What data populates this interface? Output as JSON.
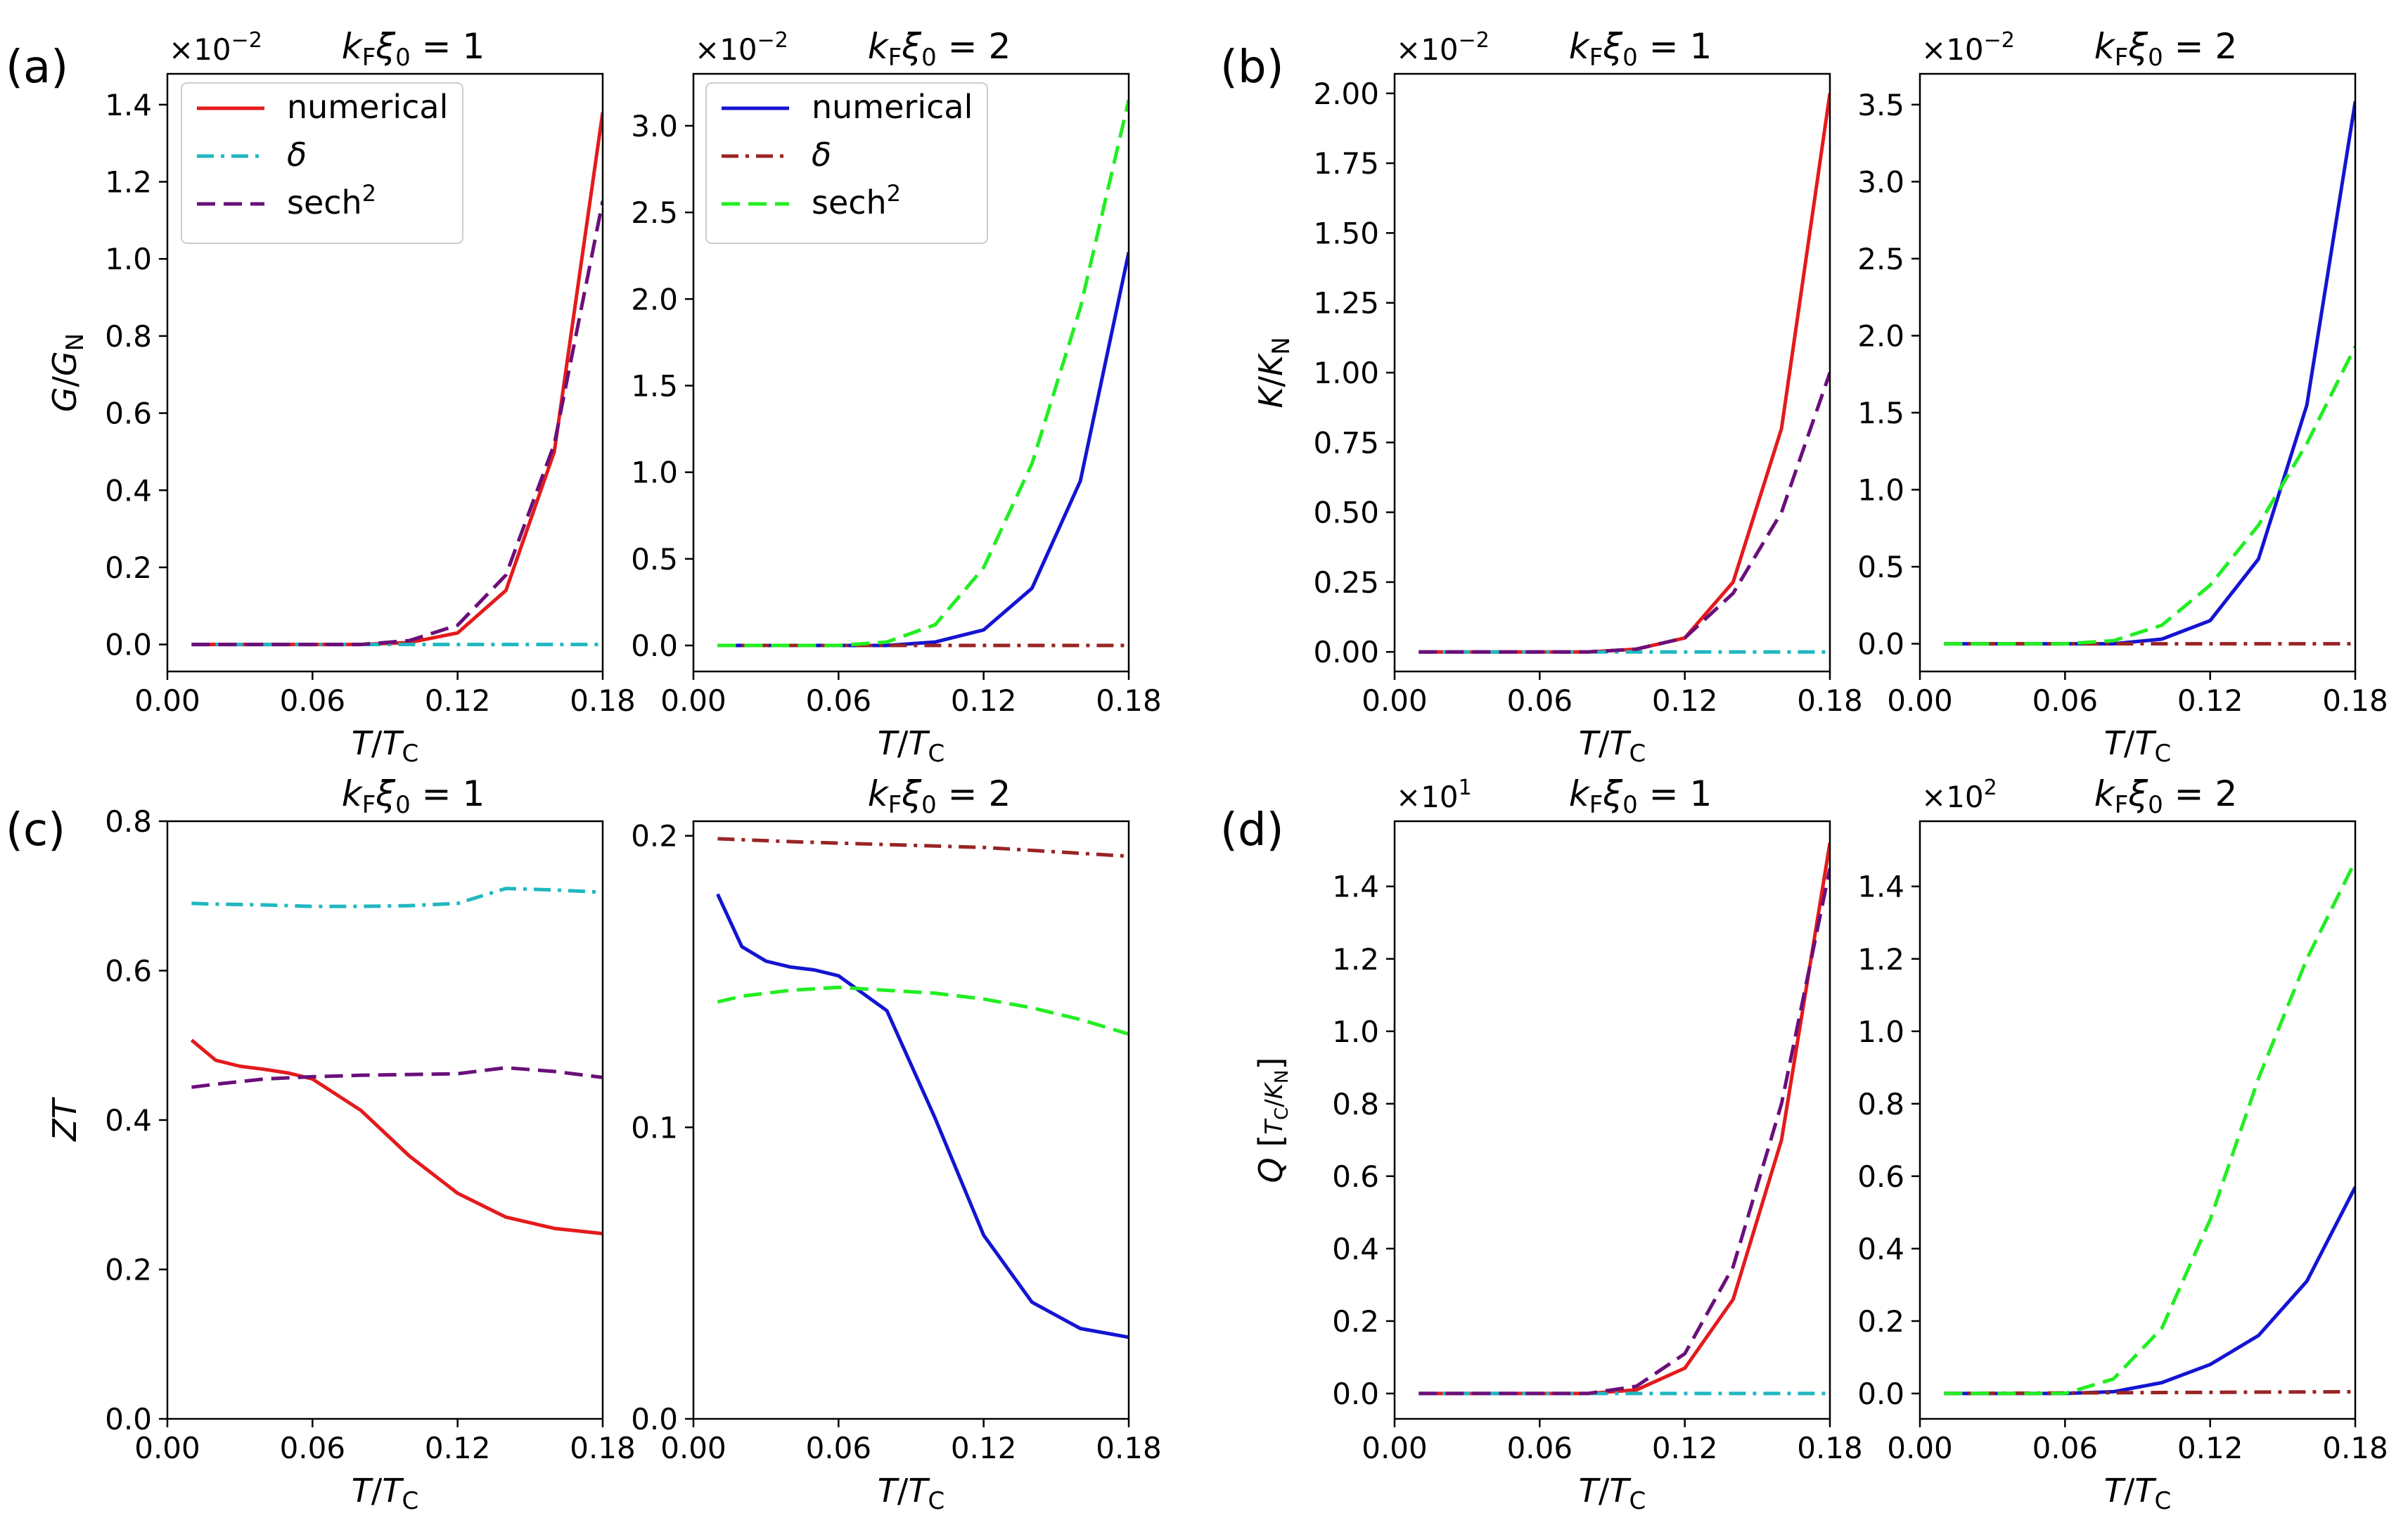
{
  "figure": {
    "panel_labels": [
      "(a)",
      "(b)",
      "(c)",
      "(d)"
    ],
    "title_left": "k_Fξ_0 = 1",
    "title_right": "k_Fξ_0 = 2"
  },
  "legend_left": [
    {
      "label": "numerical",
      "color": "#e41a1c",
      "style": "solid"
    },
    {
      "label": "δ",
      "color": "#20b7c0",
      "style": "dashdot"
    },
    {
      "label": "sech²",
      "color": "#6a0f7a",
      "style": "dashed"
    }
  ],
  "legend_right": [
    {
      "label": "numerical",
      "color": "#1414d2",
      "style": "solid"
    },
    {
      "label": "δ",
      "color": "#9a2424",
      "style": "dashdot"
    },
    {
      "label": "sech²",
      "color": "#22ee22",
      "style": "dashed"
    }
  ],
  "chart_data": [
    {
      "id": "a1",
      "panel": "(a)",
      "type": "line",
      "title": "k_Fξ_0 = 1",
      "xlabel": "T/T_C",
      "ylabel": "G/G_N",
      "multiplier": "×10⁻²",
      "xlim": [
        0,
        0.18
      ],
      "ylim": [
        -0.07,
        1.48
      ],
      "xticks": [
        0,
        0.06,
        0.12,
        0.18
      ],
      "xtick_labels": [
        "0.00",
        "0.06",
        "0.12",
        "0.18"
      ],
      "yticks": [
        0,
        0.2,
        0.4,
        0.6,
        0.8,
        1.0,
        1.2,
        1.4
      ],
      "ytick_labels": [
        "0.0",
        "0.2",
        "0.4",
        "0.6",
        "0.8",
        "1.0",
        "1.2",
        "1.4"
      ],
      "series": [
        {
          "name": "numerical",
          "color": "#e41a1c",
          "style": "solid",
          "x": [
            0.01,
            0.02,
            0.04,
            0.06,
            0.08,
            0.1,
            0.12,
            0.14,
            0.16,
            0.18
          ],
          "y": [
            0,
            0,
            0,
            0,
            0,
            0.005,
            0.03,
            0.14,
            0.5,
            1.38
          ]
        },
        {
          "name": "δ",
          "color": "#20b7c0",
          "style": "dashdot",
          "x": [
            0.01,
            0.18
          ],
          "y": [
            0,
            0
          ]
        },
        {
          "name": "sech²",
          "color": "#6a0f7a",
          "style": "dashed",
          "x": [
            0.01,
            0.02,
            0.04,
            0.06,
            0.08,
            0.1,
            0.12,
            0.14,
            0.16,
            0.18
          ],
          "y": [
            0,
            0,
            0,
            0,
            0,
            0.01,
            0.05,
            0.18,
            0.52,
            1.15
          ]
        }
      ]
    },
    {
      "id": "a2",
      "panel": "(a)",
      "type": "line",
      "title": "k_Fξ_0 = 2",
      "xlabel": "T/T_C",
      "ylabel": "",
      "multiplier": "×10⁻²",
      "xlim": [
        0,
        0.18
      ],
      "ylim": [
        -0.15,
        3.3
      ],
      "xticks": [
        0,
        0.06,
        0.12,
        0.18
      ],
      "xtick_labels": [
        "0.00",
        "0.06",
        "0.12",
        "0.18"
      ],
      "yticks": [
        0,
        0.5,
        1.0,
        1.5,
        2.0,
        2.5,
        3.0
      ],
      "ytick_labels": [
        "0.0",
        "0.5",
        "1.0",
        "1.5",
        "2.0",
        "2.5",
        "3.0"
      ],
      "series": [
        {
          "name": "numerical",
          "color": "#1414d2",
          "style": "solid",
          "x": [
            0.01,
            0.02,
            0.04,
            0.06,
            0.08,
            0.1,
            0.12,
            0.14,
            0.16,
            0.18
          ],
          "y": [
            0,
            0,
            0,
            0,
            0,
            0.02,
            0.09,
            0.33,
            0.95,
            2.27
          ]
        },
        {
          "name": "δ",
          "color": "#9a2424",
          "style": "dashdot",
          "x": [
            0.01,
            0.18
          ],
          "y": [
            0,
            0
          ]
        },
        {
          "name": "sech²",
          "color": "#22ee22",
          "style": "dashed",
          "x": [
            0.01,
            0.02,
            0.04,
            0.06,
            0.08,
            0.1,
            0.12,
            0.14,
            0.16,
            0.18
          ],
          "y": [
            0,
            0,
            0,
            0,
            0.02,
            0.12,
            0.45,
            1.05,
            1.95,
            3.15
          ]
        }
      ]
    },
    {
      "id": "b1",
      "panel": "(b)",
      "type": "line",
      "title": "k_Fξ_0 = 1",
      "xlabel": "T/T_C",
      "ylabel": "K/K_N",
      "multiplier": "×10⁻²",
      "xlim": [
        0,
        0.18
      ],
      "ylim": [
        -0.07,
        2.07
      ],
      "xticks": [
        0,
        0.06,
        0.12,
        0.18
      ],
      "xtick_labels": [
        "0.00",
        "0.06",
        "0.12",
        "0.18"
      ],
      "yticks": [
        0,
        0.25,
        0.5,
        0.75,
        1.0,
        1.25,
        1.5,
        1.75,
        2.0
      ],
      "ytick_labels": [
        "0.00",
        "0.25",
        "0.50",
        "0.75",
        "1.00",
        "1.25",
        "1.50",
        "1.75",
        "2.00"
      ],
      "series": [
        {
          "name": "numerical",
          "color": "#e41a1c",
          "style": "solid",
          "x": [
            0.01,
            0.02,
            0.04,
            0.06,
            0.08,
            0.1,
            0.12,
            0.14,
            0.16,
            0.18
          ],
          "y": [
            0,
            0,
            0,
            0,
            0,
            0.01,
            0.05,
            0.25,
            0.8,
            2.0
          ]
        },
        {
          "name": "δ",
          "color": "#20b7c0",
          "style": "dashdot",
          "x": [
            0.01,
            0.18
          ],
          "y": [
            0,
            0
          ]
        },
        {
          "name": "sech²",
          "color": "#6a0f7a",
          "style": "dashed",
          "x": [
            0.01,
            0.02,
            0.04,
            0.06,
            0.08,
            0.1,
            0.12,
            0.14,
            0.16,
            0.18
          ],
          "y": [
            0,
            0,
            0,
            0,
            0,
            0.01,
            0.05,
            0.21,
            0.5,
            1.0
          ]
        }
      ]
    },
    {
      "id": "b2",
      "panel": "(b)",
      "type": "line",
      "title": "k_Fξ_0 = 2",
      "xlabel": "T/T_C",
      "ylabel": "",
      "multiplier": "×10⁻²",
      "xlim": [
        0,
        0.18
      ],
      "ylim": [
        -0.18,
        3.7
      ],
      "xticks": [
        0,
        0.06,
        0.12,
        0.18
      ],
      "xtick_labels": [
        "0.00",
        "0.06",
        "0.12",
        "0.18"
      ],
      "yticks": [
        0,
        0.5,
        1.0,
        1.5,
        2.0,
        2.5,
        3.0,
        3.5
      ],
      "ytick_labels": [
        "0.0",
        "0.5",
        "1.0",
        "1.5",
        "2.0",
        "2.5",
        "3.0",
        "3.5"
      ],
      "series": [
        {
          "name": "numerical",
          "color": "#1414d2",
          "style": "solid",
          "x": [
            0.01,
            0.02,
            0.04,
            0.06,
            0.08,
            0.1,
            0.12,
            0.14,
            0.16,
            0.18
          ],
          "y": [
            0,
            0,
            0,
            0,
            0,
            0.03,
            0.15,
            0.55,
            1.55,
            3.52
          ]
        },
        {
          "name": "δ",
          "color": "#9a2424",
          "style": "dashdot",
          "x": [
            0.01,
            0.18
          ],
          "y": [
            0,
            0
          ]
        },
        {
          "name": "sech²",
          "color": "#22ee22",
          "style": "dashed",
          "x": [
            0.01,
            0.02,
            0.04,
            0.06,
            0.08,
            0.1,
            0.12,
            0.14,
            0.16,
            0.18
          ],
          "y": [
            0,
            0,
            0,
            0,
            0.02,
            0.12,
            0.38,
            0.77,
            1.3,
            1.93
          ]
        }
      ]
    },
    {
      "id": "c1",
      "panel": "(c)",
      "type": "line",
      "title": "k_Fξ_0 = 1",
      "xlabel": "T/T_C",
      "ylabel": "ZT",
      "multiplier": "",
      "xlim": [
        0,
        0.18
      ],
      "ylim": [
        0,
        0.8
      ],
      "xticks": [
        0,
        0.06,
        0.12,
        0.18
      ],
      "xtick_labels": [
        "0.00",
        "0.06",
        "0.12",
        "0.18"
      ],
      "yticks": [
        0,
        0.2,
        0.4,
        0.6,
        0.8
      ],
      "ytick_labels": [
        "0.0",
        "0.2",
        "0.4",
        "0.6",
        "0.8"
      ],
      "series": [
        {
          "name": "numerical",
          "color": "#e41a1c",
          "style": "solid",
          "x": [
            0.01,
            0.02,
            0.03,
            0.04,
            0.05,
            0.06,
            0.08,
            0.1,
            0.12,
            0.14,
            0.16,
            0.18
          ],
          "y": [
            0.507,
            0.48,
            0.472,
            0.468,
            0.463,
            0.455,
            0.413,
            0.352,
            0.302,
            0.27,
            0.255,
            0.248
          ]
        },
        {
          "name": "δ",
          "color": "#20b7c0",
          "style": "dashdot",
          "x": [
            0.01,
            0.02,
            0.04,
            0.06,
            0.08,
            0.1,
            0.12,
            0.14,
            0.16,
            0.18
          ],
          "y": [
            0.69,
            0.689,
            0.688,
            0.686,
            0.686,
            0.687,
            0.69,
            0.71,
            0.708,
            0.705
          ]
        },
        {
          "name": "sech²",
          "color": "#6a0f7a",
          "style": "dashed",
          "x": [
            0.01,
            0.02,
            0.04,
            0.06,
            0.08,
            0.1,
            0.12,
            0.14,
            0.16,
            0.18
          ],
          "y": [
            0.444,
            0.448,
            0.455,
            0.458,
            0.46,
            0.461,
            0.462,
            0.47,
            0.465,
            0.457
          ]
        }
      ]
    },
    {
      "id": "c2",
      "panel": "(c)",
      "type": "line",
      "title": "k_Fξ_0 = 2",
      "xlabel": "T/T_C",
      "ylabel": "",
      "multiplier": "",
      "xlim": [
        0,
        0.18
      ],
      "ylim": [
        0,
        0.205
      ],
      "xticks": [
        0,
        0.06,
        0.12,
        0.18
      ],
      "xtick_labels": [
        "0.00",
        "0.06",
        "0.12",
        "0.18"
      ],
      "yticks": [
        0,
        0.1,
        0.2
      ],
      "ytick_labels": [
        "0.0",
        "0.1",
        "0.2"
      ],
      "series": [
        {
          "name": "numerical",
          "color": "#1414d2",
          "style": "solid",
          "x": [
            0.01,
            0.02,
            0.03,
            0.04,
            0.05,
            0.06,
            0.08,
            0.1,
            0.12,
            0.14,
            0.16,
            0.18
          ],
          "y": [
            0.18,
            0.162,
            0.157,
            0.155,
            0.154,
            0.152,
            0.14,
            0.103,
            0.063,
            0.04,
            0.031,
            0.028
          ]
        },
        {
          "name": "δ",
          "color": "#9a2424",
          "style": "dashdot",
          "x": [
            0.01,
            0.04,
            0.08,
            0.12,
            0.16,
            0.18
          ],
          "y": [
            0.199,
            0.198,
            0.197,
            0.196,
            0.194,
            0.193
          ]
        },
        {
          "name": "sech²",
          "color": "#22ee22",
          "style": "dashed",
          "x": [
            0.01,
            0.02,
            0.04,
            0.06,
            0.08,
            0.1,
            0.12,
            0.14,
            0.16,
            0.18
          ],
          "y": [
            0.143,
            0.145,
            0.147,
            0.148,
            0.147,
            0.146,
            0.144,
            0.141,
            0.137,
            0.132
          ]
        }
      ]
    },
    {
      "id": "d1",
      "panel": "(d)",
      "type": "line",
      "title": "k_Fξ_0 = 1",
      "xlabel": "T/T_C",
      "ylabel": "Q [T_C/K_N]",
      "multiplier": "×10¹",
      "xlim": [
        0,
        0.18
      ],
      "ylim": [
        -0.07,
        1.58
      ],
      "xticks": [
        0,
        0.06,
        0.12,
        0.18
      ],
      "xtick_labels": [
        "0.00",
        "0.06",
        "0.12",
        "0.18"
      ],
      "yticks": [
        0,
        0.2,
        0.4,
        0.6,
        0.8,
        1.0,
        1.2,
        1.4
      ],
      "ytick_labels": [
        "0.0",
        "0.2",
        "0.4",
        "0.6",
        "0.8",
        "1.0",
        "1.2",
        "1.4"
      ],
      "series": [
        {
          "name": "numerical",
          "color": "#e41a1c",
          "style": "solid",
          "x": [
            0.01,
            0.02,
            0.04,
            0.06,
            0.08,
            0.1,
            0.12,
            0.14,
            0.16,
            0.18
          ],
          "y": [
            0,
            0,
            0,
            0,
            0,
            0.01,
            0.07,
            0.26,
            0.7,
            1.52
          ]
        },
        {
          "name": "δ",
          "color": "#20b7c0",
          "style": "dashdot",
          "x": [
            0.01,
            0.18
          ],
          "y": [
            0,
            0
          ]
        },
        {
          "name": "sech²",
          "color": "#6a0f7a",
          "style": "dashed",
          "x": [
            0.01,
            0.02,
            0.04,
            0.06,
            0.08,
            0.1,
            0.12,
            0.14,
            0.16,
            0.18
          ],
          "y": [
            0,
            0,
            0,
            0,
            0,
            0.02,
            0.11,
            0.35,
            0.8,
            1.45
          ]
        }
      ]
    },
    {
      "id": "d2",
      "panel": "(d)",
      "type": "line",
      "title": "k_Fξ_0 = 2",
      "xlabel": "T/T_C",
      "ylabel": "",
      "multiplier": "×10²",
      "xlim": [
        0,
        0.18
      ],
      "ylim": [
        -0.07,
        1.58
      ],
      "xticks": [
        0,
        0.06,
        0.12,
        0.18
      ],
      "xtick_labels": [
        "0.00",
        "0.06",
        "0.12",
        "0.18"
      ],
      "yticks": [
        0,
        0.2,
        0.4,
        0.6,
        0.8,
        1.0,
        1.2,
        1.4
      ],
      "ytick_labels": [
        "0.0",
        "0.2",
        "0.4",
        "0.6",
        "0.8",
        "1.0",
        "1.2",
        "1.4"
      ],
      "series": [
        {
          "name": "numerical",
          "color": "#1414d2",
          "style": "solid",
          "x": [
            0.01,
            0.02,
            0.04,
            0.06,
            0.08,
            0.1,
            0.12,
            0.14,
            0.16,
            0.18
          ],
          "y": [
            0,
            0,
            0,
            0,
            0.005,
            0.03,
            0.08,
            0.16,
            0.31,
            0.57
          ]
        },
        {
          "name": "δ",
          "color": "#9a2424",
          "style": "dashdot",
          "x": [
            0.01,
            0.18
          ],
          "y": [
            0,
            0.005
          ]
        },
        {
          "name": "sech²",
          "color": "#22ee22",
          "style": "dashed",
          "x": [
            0.01,
            0.02,
            0.04,
            0.06,
            0.08,
            0.1,
            0.12,
            0.14,
            0.16,
            0.18
          ],
          "y": [
            0,
            0,
            0,
            0,
            0.04,
            0.18,
            0.48,
            0.87,
            1.2,
            1.47
          ]
        }
      ]
    }
  ]
}
